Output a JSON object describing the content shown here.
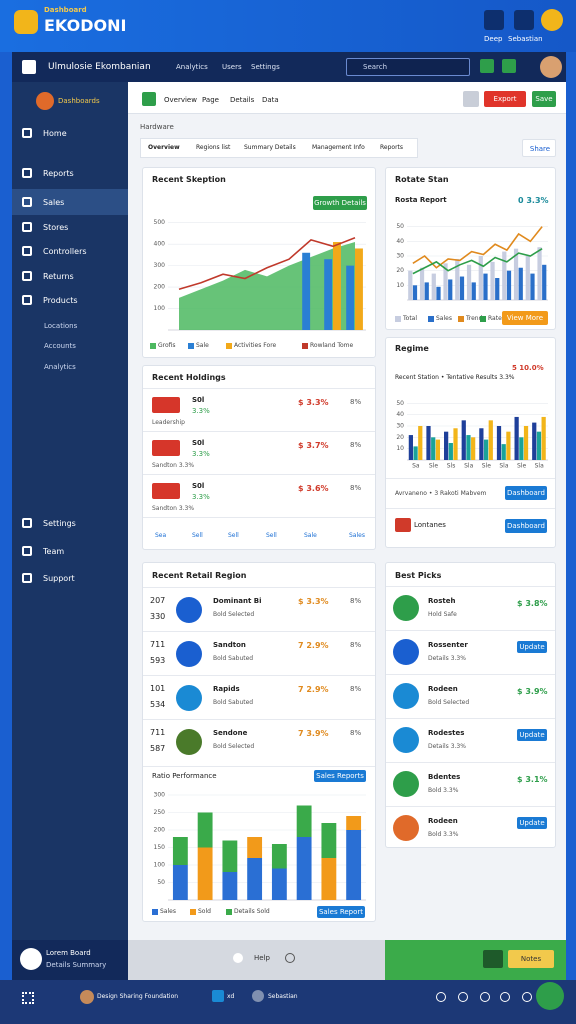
{
  "header": {
    "brand_tag": "Dashboard",
    "brand": "EKODONI",
    "user": "Deep",
    "user_role": "Sebastian"
  },
  "window": {
    "title": "Ulmulosie Ekombanian",
    "nav": [
      "Analytics",
      "Users",
      "Settings"
    ],
    "search": "Search"
  },
  "sidebar": {
    "profile": "Dashboards",
    "items": [
      "Home",
      "Reports",
      "Sales",
      "Stores",
      "Controllers",
      "Returns",
      "Products"
    ],
    "subitems": [
      "Locations",
      "Accounts",
      "Analytics"
    ],
    "bottom_items": [
      "Settings",
      "Team",
      "Support"
    ],
    "footer": [
      "Lorem Board",
      "Details Summary"
    ]
  },
  "toolbar": {
    "tabs": [
      "Overview",
      "Page",
      "Details",
      "Data"
    ],
    "export": "Export",
    "save": "Save"
  },
  "breadcrumb": "Hardware",
  "filters": [
    "Overview",
    "Regions list",
    "Summary Details",
    "Management Info",
    "Reports"
  ],
  "share": "Share",
  "holdings": {
    "title": "Recent Holdings",
    "rows": [
      {
        "label": "S0l",
        "sub": "3.3%",
        "meta": "Leadership",
        "value": "$ 3.3%",
        "delta": "8%"
      },
      {
        "label": "S0l",
        "sub": "3.3%",
        "meta": "Sandton 3.3%",
        "value": "$ 3.7%",
        "delta": "8%"
      },
      {
        "label": "S0l",
        "sub": "3.3%",
        "meta": "Sandton 3.3%",
        "value": "$ 3.6%",
        "delta": "8%"
      }
    ],
    "footer": [
      "Sea",
      "Sell",
      "Sell",
      "Sell",
      "Sale",
      "Sales"
    ]
  },
  "regime_rows": [
    {
      "label": "Avrvaneno • 3 Rakoti Mabvem",
      "action": "Dashboard"
    },
    {
      "label": "Lontanes",
      "action": "Dashboard"
    }
  ],
  "retail": {
    "title": "Recent Retail Region",
    "rows": [
      {
        "a": "207",
        "b": "330",
        "label": "Dominant Bi",
        "sub": "Bold Selected",
        "value": "$ 3.3%",
        "delta": "8%"
      },
      {
        "a": "711",
        "b": "593",
        "label": "Sandton",
        "sub": "Bold Sabuted",
        "value": "7 2.9%",
        "delta": "8%"
      },
      {
        "a": "101",
        "b": "534",
        "label": "Rapids",
        "sub": "Bold Sabuted",
        "value": "7 2.9%",
        "delta": "8%"
      },
      {
        "a": "711",
        "b": "587",
        "label": "Sendone",
        "sub": "Bold Selected",
        "value": "7 3.9%",
        "delta": "8%"
      }
    ]
  },
  "picks": {
    "title": "Best Picks",
    "rows": [
      {
        "label": "Rosteh",
        "sub": "Hold Safe",
        "value": "$ 3.8%"
      },
      {
        "label": "Rossenter",
        "sub": "Details 3.3%",
        "action": "Update"
      },
      {
        "label": "Rodeen",
        "sub": "Bold Selected",
        "value": "$ 3.9%"
      },
      {
        "label": "Rodestes",
        "sub": "Details 3.3%",
        "action": "Update"
      },
      {
        "label": "Bdentes",
        "sub": "Bold 3.3%",
        "value": "$ 3.1%"
      },
      {
        "label": "Rodeen",
        "sub": "Bold 3.3%",
        "action": "Update"
      }
    ]
  },
  "statusbar": {
    "help": "Help",
    "notes": "Notes"
  },
  "taskbar": {
    "app": "Design Sharing Foundation",
    "tag": "xd",
    "user": "Sebastian"
  },
  "chart_data": [
    {
      "type": "bar",
      "title": "Recent Skeption",
      "action": "Growth Details",
      "categories": [
        null,
        null,
        null,
        null,
        null,
        null,
        null,
        null,
        null
      ],
      "ylim": [
        0,
        550
      ],
      "yticks": [
        100,
        200,
        300,
        400,
        500
      ],
      "grid": true,
      "series": [
        {
          "name": "Grofis",
          "style": "area",
          "color": "#4cb860",
          "values": [
            150,
            190,
            230,
            280,
            250,
            300,
            340,
            380,
            410
          ]
        },
        {
          "name": "Sale",
          "style": "bar",
          "color": "#2a7fd4",
          "values": [
            null,
            null,
            null,
            null,
            null,
            null,
            360,
            330,
            300
          ]
        },
        {
          "name": "Activities Fore",
          "style": "bar",
          "color": "#f2a91a",
          "values": [
            null,
            null,
            null,
            null,
            null,
            null,
            null,
            410,
            380
          ]
        },
        {
          "name": "Rowland Tome",
          "style": "line",
          "color": "#c0392b",
          "values": [
            190,
            220,
            260,
            240,
            290,
            330,
            420,
            390,
            430
          ]
        }
      ]
    },
    {
      "type": "bar",
      "title": "Rotate Stan",
      "stat": "0 3.3%",
      "subtitle": "Rosta Report",
      "action": "View More",
      "categories": [
        null,
        null,
        null,
        null,
        null,
        null,
        null,
        null,
        null,
        null,
        null,
        null
      ],
      "ylim": [
        0,
        60
      ],
      "yticks": [
        10,
        20,
        30,
        40,
        50
      ],
      "grid": true,
      "series": [
        {
          "name": "Total",
          "style": "bar",
          "color": "#c7cde0",
          "values": [
            20,
            22,
            18,
            25,
            28,
            24,
            30,
            26,
            33,
            35,
            30,
            36
          ]
        },
        {
          "name": "Sales",
          "style": "bar",
          "color": "#2a6fc9",
          "values": [
            10,
            12,
            9,
            14,
            16,
            12,
            18,
            15,
            20,
            22,
            18,
            24
          ]
        },
        {
          "name": "Trend",
          "style": "line",
          "color": "#e08a1e",
          "values": [
            25,
            30,
            22,
            28,
            27,
            33,
            31,
            38,
            34,
            45,
            40,
            50
          ]
        },
        {
          "name": "Rate",
          "style": "line",
          "color": "#2e9e4a",
          "values": [
            18,
            22,
            26,
            20,
            24,
            27,
            23,
            29,
            26,
            32,
            30,
            35
          ]
        }
      ]
    },
    {
      "type": "bar",
      "title": "Regime",
      "stat": "5 10.0%",
      "subtitle": "Recent Station • Tentative Results 3.3%",
      "categories": [
        "Sa",
        "Sle",
        "Sls",
        "Sla",
        "Sle",
        "Sla",
        "Sle",
        "Sla"
      ],
      "ylim": [
        0,
        60
      ],
      "yticks": [
        10,
        20,
        30,
        40,
        50
      ],
      "grid": true,
      "series": [
        {
          "style": "bar",
          "color": "#1e3f9a",
          "values": [
            22,
            30,
            25,
            35,
            28,
            30,
            38,
            33
          ]
        },
        {
          "style": "bar",
          "color": "#1aa39a",
          "values": [
            12,
            20,
            15,
            22,
            18,
            14,
            20,
            25
          ]
        },
        {
          "style": "bar",
          "color": "#f2b51a",
          "values": [
            30,
            18,
            28,
            20,
            35,
            25,
            30,
            38
          ]
        }
      ]
    },
    {
      "type": "bar",
      "title": "Ratio Performance",
      "action": "Sales Reports",
      "footer_action": "Sales Report",
      "stacked": true,
      "categories": [
        null,
        null,
        null,
        null,
        null,
        null,
        null,
        null
      ],
      "ylim": [
        0,
        320
      ],
      "yticks": [
        50,
        100,
        150,
        200,
        250,
        300
      ],
      "grid": true,
      "series": [
        {
          "name": "Sales",
          "style": "bar",
          "color": "#2a6fd4",
          "values": [
            100,
            null,
            80,
            120,
            90,
            180,
            null,
            200
          ]
        },
        {
          "name": "Sold",
          "style": "bar",
          "color": "#f29a1a",
          "values": [
            null,
            150,
            null,
            60,
            null,
            null,
            120,
            40
          ]
        },
        {
          "name": "Details Sold",
          "style": "bar",
          "color": "#3aaa4a",
          "values": [
            80,
            100,
            90,
            null,
            70,
            90,
            100,
            null
          ]
        }
      ]
    }
  ]
}
